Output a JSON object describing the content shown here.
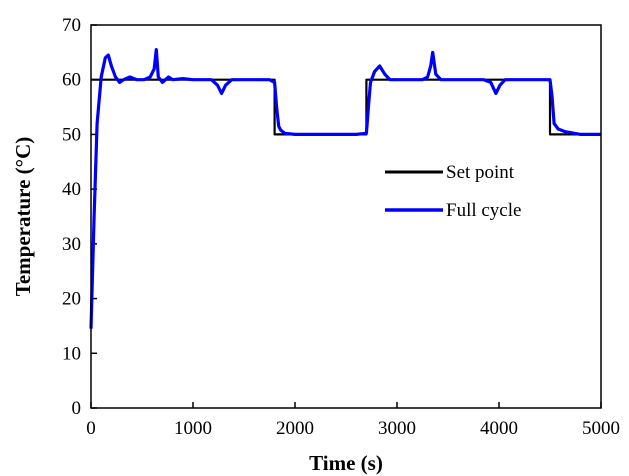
{
  "chart_data": {
    "type": "line",
    "title": "",
    "xlabel": "Time (s)",
    "ylabel": "Temperature (°C)",
    "xlim": [
      0,
      5000
    ],
    "ylim": [
      0,
      70
    ],
    "xticks": [
      0,
      1000,
      2000,
      3000,
      4000,
      5000
    ],
    "yticks": [
      0,
      10,
      20,
      30,
      40,
      50,
      60,
      70
    ],
    "grid": false,
    "legend_position": "right",
    "series": [
      {
        "name": "Set point",
        "color": "#000000",
        "x": [
          0,
          1800,
          1800,
          2700,
          2700,
          4500,
          4500,
          5000
        ],
        "y": [
          60,
          60,
          50,
          50,
          60,
          60,
          50,
          50
        ]
      },
      {
        "name": "Full cycle",
        "color": "#0000ff",
        "x": [
          0,
          30,
          60,
          100,
          140,
          170,
          200,
          240,
          280,
          320,
          380,
          450,
          520,
          580,
          620,
          640,
          660,
          700,
          760,
          800,
          900,
          1000,
          1100,
          1180,
          1240,
          1280,
          1320,
          1380,
          1450,
          1550,
          1650,
          1750,
          1800,
          1820,
          1840,
          1860,
          1900,
          2000,
          2200,
          2400,
          2600,
          2700,
          2720,
          2740,
          2780,
          2830,
          2880,
          2930,
          2980,
          3050,
          3150,
          3250,
          3300,
          3330,
          3350,
          3380,
          3430,
          3550,
          3700,
          3850,
          3920,
          3970,
          4010,
          4060,
          4200,
          4350,
          4450,
          4500,
          4520,
          4540,
          4580,
          4650,
          4800,
          4950,
          5000
        ],
        "y": [
          14.5,
          35,
          52,
          60.5,
          64,
          64.5,
          62.5,
          60.5,
          59.5,
          60,
          60.5,
          60,
          60,
          60.5,
          62,
          65.5,
          60.5,
          59.5,
          60.5,
          60,
          60.2,
          60,
          60,
          60,
          59,
          57.5,
          59,
          60,
          60,
          60,
          60,
          60,
          59.5,
          55,
          51.5,
          50.8,
          50.2,
          50,
          50,
          50,
          50,
          50.2,
          55,
          59.5,
          61.5,
          62.5,
          61,
          60,
          60,
          60,
          60,
          60,
          60.5,
          62.5,
          65,
          61,
          60,
          60,
          60,
          60,
          59.5,
          57.5,
          59,
          60,
          60,
          60,
          60,
          60,
          57,
          52,
          51,
          50.5,
          50,
          50,
          50
        ]
      }
    ]
  }
}
